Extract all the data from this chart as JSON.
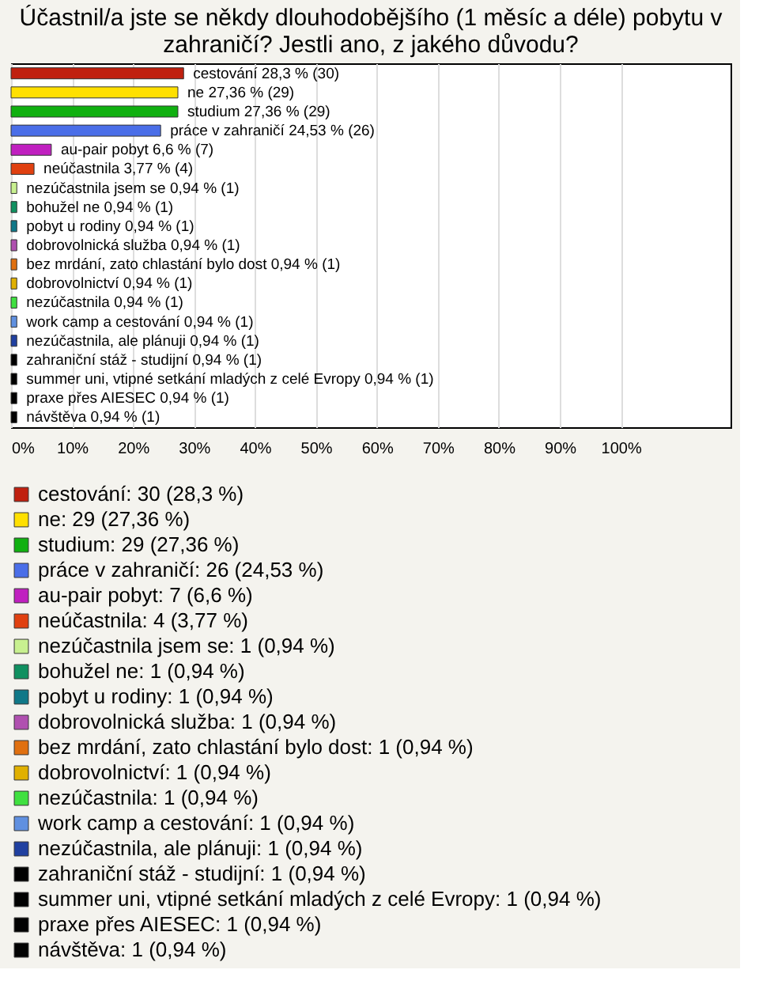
{
  "chart_data": {
    "type": "bar",
    "orientation": "horizontal",
    "title": [
      "Účastnil/a jste se někdy dlouhodobějšího (1 měsíc a déle) pobytu v",
      "zahraničí? Jestli ano, z jakého důvodu?"
    ],
    "categories": [
      null,
      null,
      null,
      null,
      null,
      null,
      null,
      null,
      null,
      null,
      null,
      null,
      null,
      null,
      null,
      null,
      null,
      null,
      null
    ],
    "series": [
      {
        "name": "cestování: 30 (28,3 %)",
        "color": "#c0200f",
        "values": [
          28.3,
          null,
          null,
          null,
          null,
          null,
          null,
          null,
          null,
          null,
          null,
          null,
          null,
          null,
          null,
          null,
          null,
          null,
          null
        ],
        "value_labels": [
          "cestování 28,3 % (30)",
          null,
          null,
          null,
          null,
          null,
          null,
          null,
          null,
          null,
          null,
          null,
          null,
          null,
          null,
          null,
          null,
          null,
          null
        ]
      },
      {
        "name": "ne: 29 (27,36 %)",
        "color": "#ffe000",
        "values": [
          null,
          27.36,
          null,
          null,
          null,
          null,
          null,
          null,
          null,
          null,
          null,
          null,
          null,
          null,
          null,
          null,
          null,
          null,
          null
        ],
        "value_labels": [
          null,
          "ne 27,36 % (29)",
          null,
          null,
          null,
          null,
          null,
          null,
          null,
          null,
          null,
          null,
          null,
          null,
          null,
          null,
          null,
          null,
          null
        ]
      },
      {
        "name": "studium: 29 (27,36 %)",
        "color": "#10b010",
        "values": [
          null,
          null,
          27.36,
          null,
          null,
          null,
          null,
          null,
          null,
          null,
          null,
          null,
          null,
          null,
          null,
          null,
          null,
          null,
          null
        ],
        "value_labels": [
          null,
          null,
          "studium 27,36 % (29)",
          null,
          null,
          null,
          null,
          null,
          null,
          null,
          null,
          null,
          null,
          null,
          null,
          null,
          null,
          null,
          null
        ]
      },
      {
        "name": "práce v zahraničí: 26 (24,53 %)",
        "color": "#4a6ee8",
        "values": [
          null,
          null,
          null,
          24.53,
          null,
          null,
          null,
          null,
          null,
          null,
          null,
          null,
          null,
          null,
          null,
          null,
          null,
          null,
          null
        ],
        "value_labels": [
          null,
          null,
          null,
          "práce v zahraničí 24,53 % (26)",
          null,
          null,
          null,
          null,
          null,
          null,
          null,
          null,
          null,
          null,
          null,
          null,
          null,
          null,
          null
        ]
      },
      {
        "name": "au-pair pobyt: 7 (6,6 %)",
        "color": "#c020c0",
        "values": [
          null,
          null,
          null,
          null,
          6.6,
          null,
          null,
          null,
          null,
          null,
          null,
          null,
          null,
          null,
          null,
          null,
          null,
          null,
          null
        ],
        "value_labels": [
          null,
          null,
          null,
          null,
          "au-pair pobyt 6,6 % (7)",
          null,
          null,
          null,
          null,
          null,
          null,
          null,
          null,
          null,
          null,
          null,
          null,
          null,
          null
        ]
      },
      {
        "name": "neúčastnila: 4 (3,77 %)",
        "color": "#e04010",
        "values": [
          null,
          null,
          null,
          null,
          null,
          3.77,
          null,
          null,
          null,
          null,
          null,
          null,
          null,
          null,
          null,
          null,
          null,
          null,
          null
        ],
        "value_labels": [
          null,
          null,
          null,
          null,
          null,
          "neúčastnila 3,77 % (4)",
          null,
          null,
          null,
          null,
          null,
          null,
          null,
          null,
          null,
          null,
          null,
          null,
          null
        ]
      },
      {
        "name": "nezúčastnila jsem se: 1 (0,94 %)",
        "color": "#c8f090",
        "values": [
          null,
          null,
          null,
          null,
          null,
          null,
          0.94,
          null,
          null,
          null,
          null,
          null,
          null,
          null,
          null,
          null,
          null,
          null,
          null
        ],
        "value_labels": [
          null,
          null,
          null,
          null,
          null,
          null,
          "nezúčastnila jsem se 0,94 % (1)",
          null,
          null,
          null,
          null,
          null,
          null,
          null,
          null,
          null,
          null,
          null,
          null
        ]
      },
      {
        "name": "bohužel ne: 1 (0,94 %)",
        "color": "#109060",
        "values": [
          null,
          null,
          null,
          null,
          null,
          null,
          null,
          0.94,
          null,
          null,
          null,
          null,
          null,
          null,
          null,
          null,
          null,
          null,
          null
        ],
        "value_labels": [
          null,
          null,
          null,
          null,
          null,
          null,
          null,
          "bohužel ne 0,94 % (1)",
          null,
          null,
          null,
          null,
          null,
          null,
          null,
          null,
          null,
          null,
          null
        ]
      },
      {
        "name": "pobyt u rodiny: 1 (0,94 %)",
        "color": "#107888",
        "values": [
          null,
          null,
          null,
          null,
          null,
          null,
          null,
          null,
          0.94,
          null,
          null,
          null,
          null,
          null,
          null,
          null,
          null,
          null,
          null
        ],
        "value_labels": [
          null,
          null,
          null,
          null,
          null,
          null,
          null,
          null,
          "pobyt u rodiny 0,94 % (1)",
          null,
          null,
          null,
          null,
          null,
          null,
          null,
          null,
          null,
          null
        ]
      },
      {
        "name": "dobrovolnická služba: 1 (0,94 %)",
        "color": "#b050b0",
        "values": [
          null,
          null,
          null,
          null,
          null,
          null,
          null,
          null,
          null,
          0.94,
          null,
          null,
          null,
          null,
          null,
          null,
          null,
          null,
          null
        ],
        "value_labels": [
          null,
          null,
          null,
          null,
          null,
          null,
          null,
          null,
          null,
          "dobrovolnická služba 0,94 % (1)",
          null,
          null,
          null,
          null,
          null,
          null,
          null,
          null,
          null
        ]
      },
      {
        "name": "bez mrdání, zato chlastání bylo dost: 1 (0,94 %)",
        "color": "#e07010",
        "values": [
          null,
          null,
          null,
          null,
          null,
          null,
          null,
          null,
          null,
          null,
          0.94,
          null,
          null,
          null,
          null,
          null,
          null,
          null,
          null
        ],
        "value_labels": [
          null,
          null,
          null,
          null,
          null,
          null,
          null,
          null,
          null,
          null,
          "bez mrdání, zato chlastání bylo dost 0,94 % (1)",
          null,
          null,
          null,
          null,
          null,
          null,
          null,
          null
        ]
      },
      {
        "name": "dobrovolnictví: 1 (0,94 %)",
        "color": "#e0b000",
        "values": [
          null,
          null,
          null,
          null,
          null,
          null,
          null,
          null,
          null,
          null,
          null,
          0.94,
          null,
          null,
          null,
          null,
          null,
          null,
          null
        ],
        "value_labels": [
          null,
          null,
          null,
          null,
          null,
          null,
          null,
          null,
          null,
          null,
          null,
          "dobrovolnictví 0,94 % (1)",
          null,
          null,
          null,
          null,
          null,
          null,
          null
        ]
      },
      {
        "name": "nezúčastnila: 1 (0,94 %)",
        "color": "#40e040",
        "values": [
          null,
          null,
          null,
          null,
          null,
          null,
          null,
          null,
          null,
          null,
          null,
          null,
          0.94,
          null,
          null,
          null,
          null,
          null,
          null
        ],
        "value_labels": [
          null,
          null,
          null,
          null,
          null,
          null,
          null,
          null,
          null,
          null,
          null,
          null,
          "nezúčastnila 0,94 % (1)",
          null,
          null,
          null,
          null,
          null,
          null
        ]
      },
      {
        "name": "work camp a cestování: 1 (0,94 %)",
        "color": "#6090e0",
        "values": [
          null,
          null,
          null,
          null,
          null,
          null,
          null,
          null,
          null,
          null,
          null,
          null,
          null,
          0.94,
          null,
          null,
          null,
          null,
          null
        ],
        "value_labels": [
          null,
          null,
          null,
          null,
          null,
          null,
          null,
          null,
          null,
          null,
          null,
          null,
          null,
          "work camp a cestování 0,94 % (1)",
          null,
          null,
          null,
          null,
          null
        ]
      },
      {
        "name": "nezúčastnila, ale plánuji: 1 (0,94 %)",
        "color": "#2040a0",
        "values": [
          null,
          null,
          null,
          null,
          null,
          null,
          null,
          null,
          null,
          null,
          null,
          null,
          null,
          null,
          0.94,
          null,
          null,
          null,
          null
        ],
        "value_labels": [
          null,
          null,
          null,
          null,
          null,
          null,
          null,
          null,
          null,
          null,
          null,
          null,
          null,
          null,
          "nezúčastnila, ale plánuji 0,94 % (1)",
          null,
          null,
          null,
          null
        ]
      },
      {
        "name": "zahraniční stáž - studijní: 1 (0,94 %)",
        "color": "#000000",
        "values": [
          null,
          null,
          null,
          null,
          null,
          null,
          null,
          null,
          null,
          null,
          null,
          null,
          null,
          null,
          null,
          0.94,
          null,
          null,
          null
        ],
        "value_labels": [
          null,
          null,
          null,
          null,
          null,
          null,
          null,
          null,
          null,
          null,
          null,
          null,
          null,
          null,
          null,
          "zahraniční stáž - studijní 0,94 % (1)",
          null,
          null,
          null
        ]
      },
      {
        "name": "summer uni, vtipné setkání mladých z celé Evropy: 1 (0,94 %)",
        "color": "#010101",
        "values": [
          null,
          null,
          null,
          null,
          null,
          null,
          null,
          null,
          null,
          null,
          null,
          null,
          null,
          null,
          null,
          null,
          0.94,
          null,
          null
        ],
        "value_labels": [
          null,
          null,
          null,
          null,
          null,
          null,
          null,
          null,
          null,
          null,
          null,
          null,
          null,
          null,
          null,
          null,
          "summer uni, vtipné setkání mladých z celé Evropy 0,94 % (1)",
          null,
          null
        ]
      },
      {
        "name": "praxe přes AIESEC: 1 (0,94 %)",
        "color": "#020202",
        "values": [
          null,
          null,
          null,
          null,
          null,
          null,
          null,
          null,
          null,
          null,
          null,
          null,
          null,
          null,
          null,
          null,
          null,
          0.94,
          null
        ],
        "value_labels": [
          null,
          null,
          null,
          null,
          null,
          null,
          null,
          null,
          null,
          null,
          null,
          null,
          null,
          null,
          null,
          null,
          null,
          "praxe přes AIESEC 0,94 % (1)",
          null
        ]
      },
      {
        "name": "návštěva: 1 (0,94 %)",
        "color": "#030303",
        "values": [
          null,
          null,
          null,
          null,
          null,
          null,
          null,
          null,
          null,
          null,
          null,
          null,
          null,
          null,
          null,
          null,
          null,
          null,
          0.94
        ],
        "value_labels": [
          null,
          null,
          null,
          null,
          null,
          null,
          null,
          null,
          null,
          null,
          null,
          null,
          null,
          null,
          null,
          null,
          null,
          null,
          "návštěva 0,94 % (1)"
        ]
      }
    ],
    "xlim": [
      0,
      118
    ],
    "xticks": [
      {
        "value": 0,
        "label": "0%"
      },
      {
        "value": 10,
        "label": "10%"
      },
      {
        "value": 20,
        "label": "20%"
      },
      {
        "value": 30,
        "label": "30%"
      },
      {
        "value": 40,
        "label": "40%"
      },
      {
        "value": 50,
        "label": "50%"
      },
      {
        "value": 60,
        "label": "60%"
      },
      {
        "value": 70,
        "label": "70%"
      },
      {
        "value": 80,
        "label": "80%"
      },
      {
        "value": 90,
        "label": "90%"
      },
      {
        "value": 100,
        "label": "100%"
      }
    ],
    "grid": "x",
    "legend": "bottom",
    "tick_labels": "x"
  }
}
